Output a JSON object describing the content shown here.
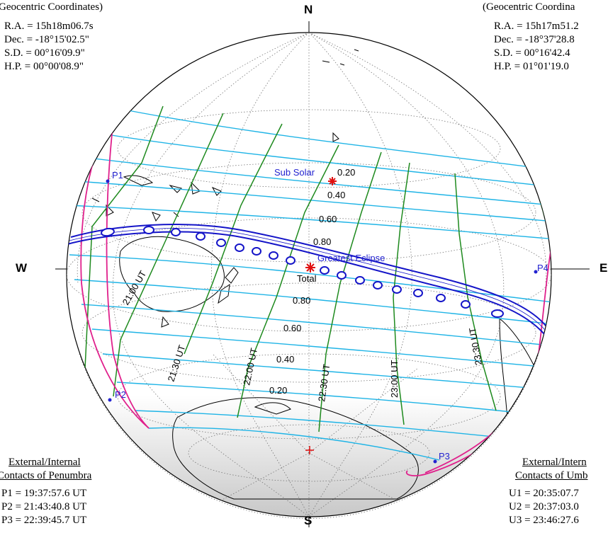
{
  "compass": {
    "north": "N",
    "south": "S",
    "west": "W",
    "east": "E"
  },
  "moon_panel": {
    "title": "Geocentric Coordinates)",
    "ra": "R.A. = 15h18m06.7s",
    "dec": "Dec. = -18°15'02.5\"",
    "sd": "S.D. = 00°16'09.9\"",
    "hp": "H.P. = 00°00'08.9\""
  },
  "sun_panel": {
    "title": "(Geocentric Coordina",
    "ra": "R.A. = 15h17m51.2",
    "dec": "Dec. = -18°37'28.8",
    "sd": "S.D. = 00°16'42.4",
    "hp": "H.P. = 01°01'19.0"
  },
  "penumbra_panel": {
    "title1": "External/Internal",
    "title2": "Contacts of Penumbra",
    "p1": "P1 = 19:37:57.6 UT",
    "p2": "P2 = 21:43:40.8 UT",
    "p3": "P3 = 22:39:45.7 UT"
  },
  "umbra_panel": {
    "title1": "External/Intern",
    "title2": "Contacts of Umb",
    "u1": "U1 = 20:35:07.7",
    "u2": "U2 = 20:37:03.0",
    "u3": "U3 = 23:46:27.6"
  },
  "points": {
    "p1": "P1",
    "p2": "P2",
    "p3": "P3",
    "p4": "P4",
    "sub_solar": "Sub Solar",
    "greatest_eclipse": "Greatest Eclipse",
    "total": "Total"
  },
  "magnitudes": {
    "north": [
      "0.20",
      "0.40",
      "0.60",
      "0.80"
    ],
    "south": [
      "0.80",
      "0.60",
      "0.40",
      "0.20"
    ]
  },
  "time_labels": [
    "21:00 UT",
    "21:30 UT",
    "22:00 UT",
    "22:30 UT",
    "23:00 UT",
    "23:30 UT"
  ],
  "colors": {
    "magnitude_lines": "#1fb4e6",
    "time_lines": "#1e8a1e",
    "penumbra_limits": "#e0208c",
    "umbra_path": "#1414c8",
    "marker": "#e01010",
    "label_blue": "#2323d0"
  }
}
